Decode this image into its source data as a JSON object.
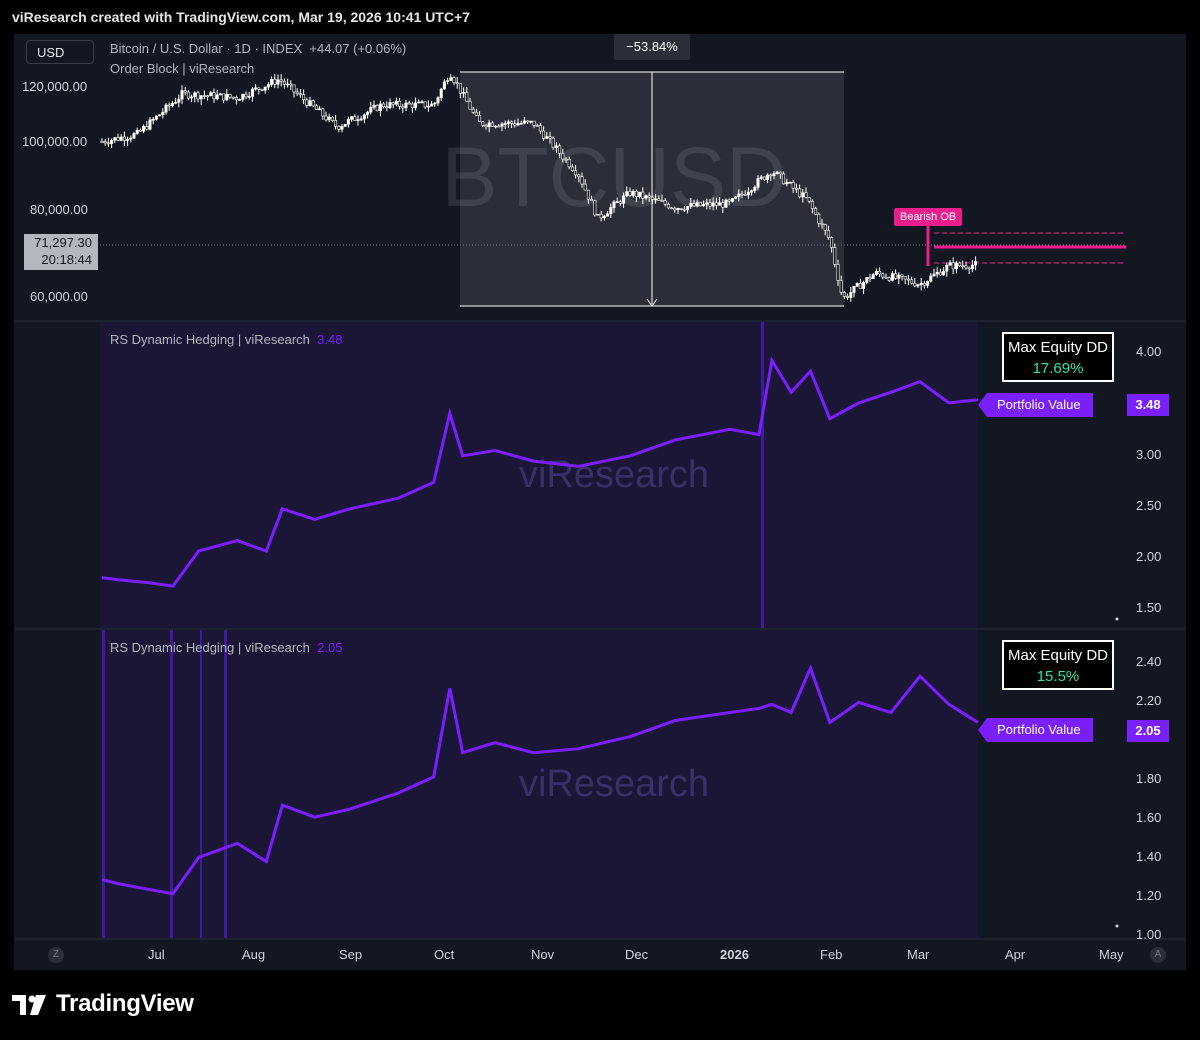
{
  "header": {
    "title": "viResearch created with TradingView.com, Mar 19, 2026 10:41 UTC+7"
  },
  "footer": {
    "brand": "TradingView",
    "logo_icon": "tradingview-logo-icon"
  },
  "colors": {
    "bg": "#131722",
    "portfolio": "#7a1fff",
    "bearish": "#e91e8c",
    "dd_value": "#2ee6a6",
    "candle": "#ffffff"
  },
  "x_axis": {
    "labels": [
      "Jul",
      "Aug",
      "Sep",
      "Oct",
      "Nov",
      "Dec",
      "2026",
      "Feb",
      "Mar",
      "Apr",
      "May"
    ],
    "left_icon": "Z",
    "right_icon": "A"
  },
  "price_pane": {
    "currency": "USD",
    "symbol_line": "Bitcoin / U.S. Dollar · 1D · INDEX",
    "change": "+44.07 (+0.06%)",
    "indicator": "Order Block | viResearch",
    "watermark": "BTCUSD",
    "y_ticks": [
      "120,000.00",
      "100,000.00",
      "80,000.00",
      "60,000.00"
    ],
    "last_price": "71,297.30",
    "countdown": "20:18:44",
    "drawdown_measure": "−53.84%",
    "bearish_ob": "Bearish OB"
  },
  "pane1": {
    "title": "RS Dynamic Hedging | viResearch",
    "value": "3.48",
    "watermark": "viResearch",
    "y_ticks": [
      "4.00",
      "3.50",
      "3.00",
      "2.50",
      "2.00",
      "1.50"
    ],
    "dd_title": "Max Equity DD",
    "dd_value": "17.69%",
    "pv_label": "Portfolio Value"
  },
  "pane2": {
    "title": "RS Dynamic Hedging | viResearch",
    "value": "2.05",
    "watermark": "viResearch",
    "y_ticks": [
      "2.40",
      "2.20",
      "2.00",
      "1.80",
      "1.60",
      "1.40",
      "1.20",
      "1.00"
    ],
    "dd_title": "Max Equity DD",
    "dd_value": "15.5%",
    "pv_label": "Portfolio Value"
  },
  "chart_data": [
    {
      "type": "line",
      "title": "Bitcoin / U.S. Dollar · 1D · INDEX",
      "x_range": [
        "2025-06-20",
        "2026-03-19"
      ],
      "ylim": [
        55000,
        128000
      ],
      "series": [
        {
          "name": "Bitcoin / U.S. Dollar",
          "x": [
            "2025-06-20",
            "2025-07-01",
            "2025-07-15",
            "2025-08-01",
            "2025-08-14",
            "2025-09-01",
            "2025-09-15",
            "2025-10-01",
            "2025-10-06",
            "2025-10-15",
            "2025-11-01",
            "2025-11-15",
            "2025-11-21",
            "2025-12-01",
            "2025-12-15",
            "2026-01-01",
            "2026-01-14",
            "2026-01-25",
            "2026-02-01",
            "2026-02-05",
            "2026-02-15",
            "2026-03-01",
            "2026-03-10",
            "2026-03-19"
          ],
          "y": [
            105000,
            107000,
            118000,
            117000,
            122000,
            109000,
            115000,
            115000,
            124000,
            110000,
            110000,
            96000,
            84000,
            91000,
            87000,
            88000,
            97000,
            89000,
            78000,
            62000,
            69000,
            66000,
            71000,
            71297
          ]
        }
      ]
    },
    {
      "type": "line",
      "title": "RS Dynamic Hedging | viResearch",
      "x_range": [
        "2025-06-20",
        "2026-03-19"
      ],
      "ylim": [
        1.4,
        4.1
      ],
      "series": [
        {
          "name": "Portfolio Value",
          "x": [
            "2025-06-20",
            "2025-06-25",
            "2025-07-05",
            "2025-07-12",
            "2025-07-20",
            "2025-08-01",
            "2025-08-10",
            "2025-08-15",
            "2025-08-25",
            "2025-09-05",
            "2025-09-20",
            "2025-10-01",
            "2025-10-06",
            "2025-10-10",
            "2025-10-20",
            "2025-11-01",
            "2025-11-15",
            "2025-12-01",
            "2025-12-15",
            "2026-01-01",
            "2026-01-10",
            "2026-01-14",
            "2026-01-20",
            "2026-01-26",
            "2026-02-01",
            "2026-02-10",
            "2026-02-20",
            "2026-03-01",
            "2026-03-10",
            "2026-03-19"
          ],
          "y": [
            1.8,
            1.78,
            1.75,
            1.72,
            2.05,
            2.15,
            2.05,
            2.45,
            2.35,
            2.45,
            2.55,
            2.7,
            3.35,
            2.95,
            3.0,
            2.9,
            2.85,
            2.95,
            3.1,
            3.2,
            3.15,
            3.85,
            3.55,
            3.75,
            3.3,
            3.45,
            3.55,
            3.65,
            3.45,
            3.48
          ]
        }
      ]
    },
    {
      "type": "line",
      "title": "RS Dynamic Hedging | viResearch",
      "x_range": [
        "2025-06-20",
        "2026-03-19"
      ],
      "ylim": [
        0.98,
        2.44
      ],
      "series": [
        {
          "name": "Portfolio Value",
          "x": [
            "2025-06-20",
            "2025-06-25",
            "2025-07-05",
            "2025-07-12",
            "2025-07-20",
            "2025-08-01",
            "2025-08-10",
            "2025-08-15",
            "2025-08-25",
            "2025-09-05",
            "2025-09-20",
            "2025-10-01",
            "2025-10-06",
            "2025-10-10",
            "2025-10-20",
            "2025-11-01",
            "2025-11-15",
            "2025-12-01",
            "2025-12-15",
            "2026-01-01",
            "2026-01-10",
            "2026-01-14",
            "2026-01-20",
            "2026-01-26",
            "2026-02-01",
            "2026-02-10",
            "2026-02-20",
            "2026-03-01",
            "2026-03-10",
            "2026-03-19"
          ],
          "y": [
            1.27,
            1.25,
            1.22,
            1.2,
            1.38,
            1.45,
            1.36,
            1.64,
            1.58,
            1.62,
            1.7,
            1.78,
            2.22,
            1.9,
            1.95,
            1.9,
            1.92,
            1.98,
            2.06,
            2.1,
            2.12,
            2.14,
            2.1,
            2.32,
            2.05,
            2.15,
            2.1,
            2.28,
            2.14,
            2.05
          ]
        }
      ]
    }
  ]
}
